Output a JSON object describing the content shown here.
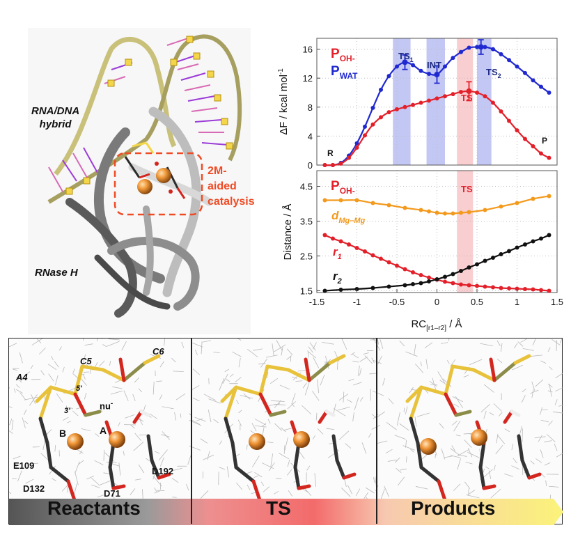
{
  "protein": {
    "hybrid_label_line1": "RNA/DNA",
    "hybrid_label_line2": "hybrid",
    "enzyme_label": "RNase H",
    "catalysis_label_line1": "2M-aided",
    "catalysis_label_line2": "catalysis"
  },
  "colors": {
    "red_series": "#e3202a",
    "blue_series": "#2029d0",
    "black_series": "#111111",
    "orange_series": "#f39a1d",
    "ts_band_blue": "#b8bdf2",
    "ts_band_red": "#f7c6c8",
    "catalysis_accent": "#ef4a24"
  },
  "chart_data": [
    {
      "type": "line",
      "ylabel": "ΔF / kcal mol⁻¹",
      "ylim": [
        0,
        17.5
      ],
      "xlim": [
        -1.5,
        1.5
      ],
      "yticks": [
        0,
        4,
        8,
        12,
        16
      ],
      "grid": true,
      "legend": [
        "P_OH-",
        "P_WAT"
      ],
      "annotations": [
        "R",
        "TS1",
        "INT",
        "TS",
        "TS2",
        "P"
      ],
      "series": [
        {
          "name": "P_WAT",
          "color": "blue",
          "x": [
            -1.4,
            -1.3,
            -1.2,
            -1.1,
            -1.0,
            -0.9,
            -0.8,
            -0.7,
            -0.6,
            -0.5,
            -0.4,
            -0.3,
            -0.2,
            -0.1,
            0.0,
            0.1,
            0.2,
            0.3,
            0.4,
            0.5,
            0.6,
            0.7,
            0.8,
            0.9,
            1.0,
            1.1,
            1.2,
            1.3,
            1.4
          ],
          "y": [
            0,
            0,
            0.3,
            1.3,
            3.0,
            5.3,
            7.9,
            10.4,
            12.3,
            13.6,
            14.2,
            13.8,
            13.0,
            12.6,
            12.5,
            13.6,
            14.8,
            15.6,
            16.2,
            16.3,
            16.3,
            16.0,
            15.3,
            14.5,
            13.6,
            12.7,
            11.7,
            10.8,
            10.0
          ]
        },
        {
          "name": "P_OH-",
          "color": "red",
          "x": [
            -1.4,
            -1.3,
            -1.2,
            -1.1,
            -1.0,
            -0.9,
            -0.8,
            -0.7,
            -0.6,
            -0.5,
            -0.4,
            -0.3,
            -0.2,
            -0.1,
            0.0,
            0.1,
            0.2,
            0.3,
            0.4,
            0.5,
            0.6,
            0.7,
            0.8,
            0.9,
            1.0,
            1.1,
            1.2,
            1.3,
            1.4
          ],
          "y": [
            0,
            0,
            0.2,
            1.0,
            2.4,
            4.1,
            5.6,
            6.6,
            7.3,
            7.7,
            8.0,
            8.3,
            8.6,
            8.9,
            9.2,
            9.5,
            9.8,
            10.1,
            10.2,
            10.0,
            9.5,
            8.6,
            7.4,
            6.1,
            4.8,
            3.6,
            2.6,
            1.6,
            1.0
          ]
        }
      ],
      "error_bars": [
        {
          "series": "P_WAT",
          "x": -0.4,
          "y": 14.2,
          "err": 1.0
        },
        {
          "series": "P_WAT",
          "x": 0.0,
          "y": 12.5,
          "err": 1.2
        },
        {
          "series": "P_WAT",
          "x": 0.55,
          "y": 16.3,
          "err": 1.0
        },
        {
          "series": "P_OH-",
          "x": 0.4,
          "y": 10.2,
          "err": 1.3
        }
      ],
      "bands": [
        {
          "from": -0.55,
          "to": -0.33,
          "color": "blue"
        },
        {
          "from": -0.13,
          "to": 0.1,
          "color": "blue"
        },
        {
          "from": 0.25,
          "to": 0.45,
          "color": "red"
        },
        {
          "from": 0.5,
          "to": 0.68,
          "color": "blue"
        }
      ]
    },
    {
      "type": "line",
      "ylabel": "Distance / Å",
      "xlabel": "RC[r1−r2] / Å",
      "ylim": [
        1.45,
        4.95
      ],
      "xlim": [
        -1.5,
        1.5
      ],
      "xticks": [
        -1.5,
        -1,
        -0.5,
        0,
        0.5,
        1,
        1.5
      ],
      "xticklabels": [
        "-1.5",
        "-1",
        "-0.5",
        "0",
        "0.5",
        "1",
        "1.5"
      ],
      "yticks": [
        1.5,
        2.5,
        3.5,
        4.5
      ],
      "grid": true,
      "legend": [
        "P_OH-"
      ],
      "annotations": [
        "TS"
      ],
      "series": [
        {
          "name": "d_Mg–Mg",
          "color": "orange",
          "x": [
            -1.4,
            -1.2,
            -1.0,
            -0.8,
            -0.6,
            -0.4,
            -0.2,
            -0.1,
            0.0,
            0.1,
            0.2,
            0.3,
            0.4,
            0.6,
            0.8,
            1.0,
            1.2,
            1.4
          ],
          "y": [
            4.1,
            4.1,
            4.1,
            4.02,
            3.96,
            3.88,
            3.82,
            3.78,
            3.74,
            3.72,
            3.72,
            3.74,
            3.76,
            3.82,
            3.92,
            4.02,
            4.14,
            4.22
          ]
        },
        {
          "name": "r1",
          "color": "red",
          "x": [
            -1.4,
            -1.3,
            -1.2,
            -1.1,
            -1.0,
            -0.9,
            -0.8,
            -0.7,
            -0.6,
            -0.5,
            -0.4,
            -0.3,
            -0.2,
            -0.1,
            0.0,
            0.1,
            0.2,
            0.3,
            0.4,
            0.5,
            0.6,
            0.7,
            0.8,
            0.9,
            1.0,
            1.1,
            1.2,
            1.3,
            1.4
          ],
          "y": [
            3.1,
            3.0,
            2.92,
            2.83,
            2.73,
            2.63,
            2.52,
            2.42,
            2.32,
            2.22,
            2.12,
            2.03,
            1.95,
            1.88,
            1.82,
            1.76,
            1.72,
            1.68,
            1.66,
            1.64,
            1.62,
            1.6,
            1.58,
            1.57,
            1.56,
            1.55,
            1.54,
            1.52,
            1.5
          ]
        },
        {
          "name": "r2",
          "color": "black",
          "x": [
            -1.4,
            -1.2,
            -1.0,
            -0.8,
            -0.6,
            -0.4,
            -0.3,
            -0.2,
            -0.1,
            0.0,
            0.1,
            0.2,
            0.3,
            0.4,
            0.5,
            0.6,
            0.7,
            0.8,
            0.9,
            1.0,
            1.1,
            1.2,
            1.3,
            1.4
          ],
          "y": [
            1.5,
            1.53,
            1.55,
            1.58,
            1.62,
            1.66,
            1.69,
            1.72,
            1.77,
            1.83,
            1.9,
            1.98,
            2.07,
            2.17,
            2.26,
            2.36,
            2.45,
            2.55,
            2.64,
            2.74,
            2.83,
            2.92,
            3.0,
            3.1
          ]
        }
      ],
      "bands": [
        {
          "from": 0.25,
          "to": 0.45,
          "color": "red"
        }
      ]
    }
  ],
  "plot_labels": {
    "top_p_oh": "P",
    "top_p_oh_sub": "OH-",
    "top_p_wat": "P",
    "top_p_wat_sub": "WAT",
    "r": "R",
    "ts1": "TS",
    "ts1_sub": "1",
    "int": "INT",
    "ts": "TS",
    "ts2": "TS",
    "ts2_sub": "2",
    "p": "P",
    "top_ylabel": "ΔF / kcal mol",
    "top_ylabel_sup": "-1",
    "bot_ylabel": "Distance / Å",
    "bot_p_oh": "P",
    "bot_p_oh_sub": "OH-",
    "bot_ts": "TS",
    "d_mg": "d",
    "d_mg_sub": "Mg–Mg",
    "r1": "r",
    "r1_sub": "1",
    "r2": "r",
    "r2_sub": "2",
    "xlabel": "RC",
    "xlabel_sub": "[r1–r2]",
    "xlabel_tail": " / Å",
    "top_yticks": [
      "0",
      "4",
      "8",
      "12",
      "16"
    ],
    "bot_yticks": [
      "1.5",
      "2.5",
      "3.5",
      "4.5"
    ],
    "xticks": [
      "-1.5",
      "-1",
      "-0.5",
      "0",
      "0.5",
      "1",
      "1.5"
    ]
  },
  "snapshots": {
    "a4": "A4",
    "c5": "C5",
    "c6": "C6",
    "prime5": "5'",
    "prime3": "3'",
    "nu": "nu",
    "nu_sup": "-",
    "site_a": "A",
    "site_b": "B",
    "e109": "E109",
    "d132": "D132",
    "d71": "D71",
    "d192": "D192",
    "reactants": "Reactants",
    "ts": "TS",
    "products": "Products"
  }
}
